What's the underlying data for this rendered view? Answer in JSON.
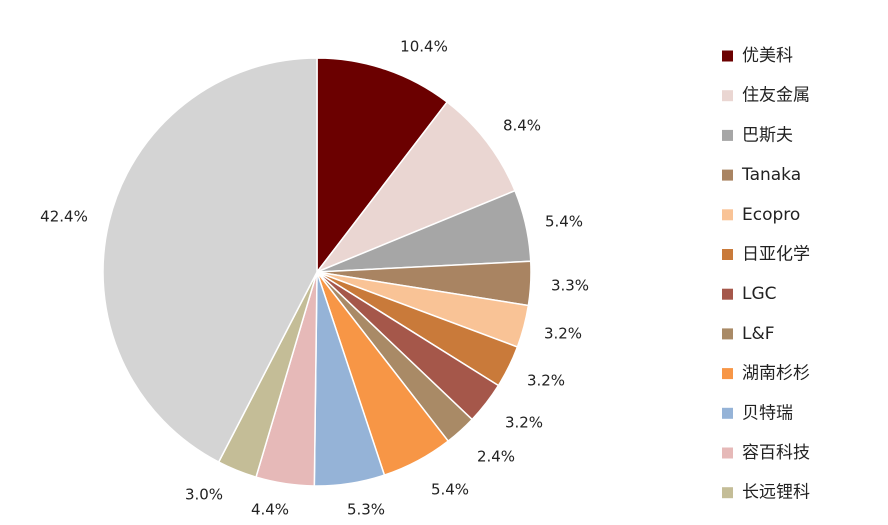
{
  "chart_data": {
    "type": "pie",
    "title": "",
    "legend_position": "right",
    "slices": [
      {
        "label": "优美科",
        "value": 10.4,
        "value_label": "10.4%",
        "color": "#6b0000"
      },
      {
        "label": "住友金属",
        "value": 8.4,
        "value_label": "8.4%",
        "color": "#ead6d2"
      },
      {
        "label": "巴斯夫",
        "value": 5.4,
        "value_label": "5.4%",
        "color": "#a6a6a6"
      },
      {
        "label": "Tanaka",
        "value": 3.3,
        "value_label": "3.3%",
        "color": "#a98462"
      },
      {
        "label": "Ecopro",
        "value": 3.2,
        "value_label": "3.2%",
        "color": "#f9c396"
      },
      {
        "label": "日亚化学",
        "value": 3.2,
        "value_label": "3.2%",
        "color": "#c97a3a"
      },
      {
        "label": "LGC",
        "value": 3.2,
        "value_label": "3.2%",
        "color": "#a5574a"
      },
      {
        "label": "L&F",
        "value": 2.4,
        "value_label": "2.4%",
        "color": "#a98a66"
      },
      {
        "label": "湖南杉杉",
        "value": 5.4,
        "value_label": "5.4%",
        "color": "#f79646"
      },
      {
        "label": "贝特瑞",
        "value": 5.3,
        "value_label": "5.3%",
        "color": "#95b3d7"
      },
      {
        "label": "容百科技",
        "value": 4.4,
        "value_label": "4.4%",
        "color": "#e6b9b8"
      },
      {
        "label": "长远锂科",
        "value": 3.0,
        "value_label": "3.0%",
        "color": "#c4bd97"
      },
      {
        "label": "",
        "value": 42.4,
        "value_label": "42.4%",
        "color": "#d4d4d4"
      }
    ]
  }
}
